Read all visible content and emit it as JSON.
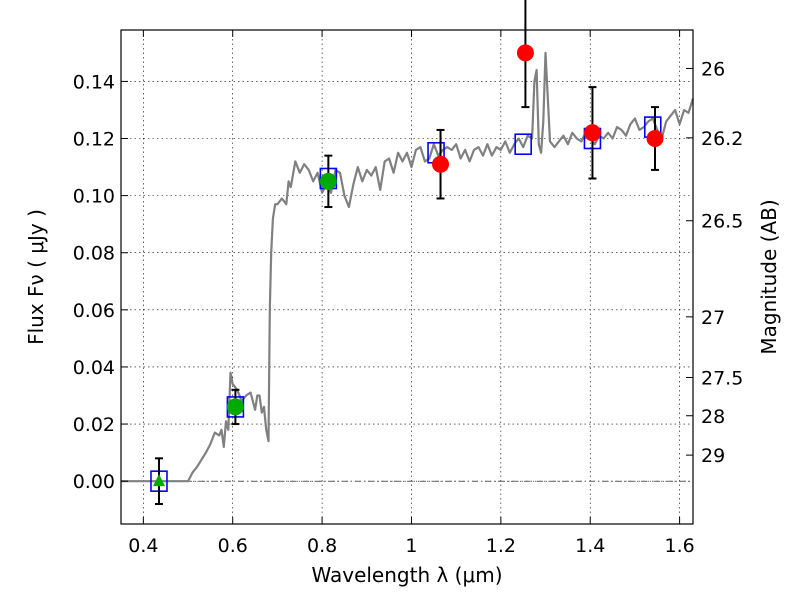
{
  "chart_data": {
    "type": "scatter",
    "xlabel": "Wavelength  λ (μm)",
    "ylabel": "Flux  Fν  ( μJy )",
    "ylabel_right": "Magnitude (AB)",
    "xlim": [
      0.35,
      1.63
    ],
    "ylim": [
      -0.015,
      0.158
    ],
    "grid": true,
    "x_ticks": [
      {
        "value": 0.4,
        "label": "0.4"
      },
      {
        "value": 0.6,
        "label": "0.6"
      },
      {
        "value": 0.8,
        "label": "0.8"
      },
      {
        "value": 1.0,
        "label": "1"
      },
      {
        "value": 1.2,
        "label": "1.2"
      },
      {
        "value": 1.4,
        "label": "1.4"
      },
      {
        "value": 1.6,
        "label": "1.6"
      }
    ],
    "y_ticks": [
      {
        "value": 0.0,
        "label": "0.00"
      },
      {
        "value": 0.02,
        "label": "0.02"
      },
      {
        "value": 0.04,
        "label": "0.04"
      },
      {
        "value": 0.06,
        "label": "0.06"
      },
      {
        "value": 0.08,
        "label": "0.08"
      },
      {
        "value": 0.1,
        "label": "0.10"
      },
      {
        "value": 0.12,
        "label": "0.12"
      },
      {
        "value": 0.14,
        "label": "0.14"
      }
    ],
    "mag_ticks": [
      {
        "value": 26.0,
        "label": "26"
      },
      {
        "value": 26.2,
        "label": "26.2"
      },
      {
        "value": 26.5,
        "label": "26.5"
      },
      {
        "value": 27.0,
        "label": "27"
      },
      {
        "value": 27.5,
        "label": "27.5"
      },
      {
        "value": 28.0,
        "label": "28"
      },
      {
        "value": 29.0,
        "label": "29"
      }
    ],
    "series": [
      {
        "kind": "model-sed",
        "color": "#808080",
        "x": [
          0.35,
          0.5,
          0.51,
          0.52,
          0.54,
          0.55,
          0.56,
          0.57,
          0.575,
          0.58,
          0.585,
          0.59,
          0.595,
          0.6,
          0.61,
          0.62,
          0.63,
          0.64,
          0.65,
          0.655,
          0.66,
          0.665,
          0.67,
          0.675,
          0.68,
          0.683,
          0.686,
          0.69,
          0.695,
          0.7,
          0.71,
          0.72,
          0.725,
          0.73,
          0.74,
          0.75,
          0.76,
          0.77,
          0.78,
          0.79,
          0.8,
          0.81,
          0.82,
          0.83,
          0.84,
          0.85,
          0.86,
          0.87,
          0.88,
          0.89,
          0.9,
          0.91,
          0.92,
          0.93,
          0.94,
          0.95,
          0.96,
          0.97,
          0.98,
          0.99,
          1.0,
          1.01,
          1.02,
          1.03,
          1.04,
          1.05,
          1.06,
          1.07,
          1.08,
          1.09,
          1.1,
          1.11,
          1.12,
          1.13,
          1.14,
          1.15,
          1.16,
          1.17,
          1.18,
          1.19,
          1.2,
          1.21,
          1.22,
          1.23,
          1.24,
          1.25,
          1.26,
          1.27,
          1.275,
          1.28,
          1.285,
          1.29,
          1.295,
          1.3,
          1.31,
          1.32,
          1.33,
          1.34,
          1.35,
          1.36,
          1.37,
          1.38,
          1.39,
          1.4,
          1.41,
          1.42,
          1.43,
          1.44,
          1.45,
          1.46,
          1.47,
          1.48,
          1.49,
          1.5,
          1.51,
          1.52,
          1.53,
          1.54,
          1.55,
          1.56,
          1.57,
          1.58,
          1.59,
          1.6,
          1.61,
          1.62,
          1.63
        ],
        "y": [
          0.0,
          0.0,
          0.003,
          0.005,
          0.01,
          0.013,
          0.017,
          0.016,
          0.018,
          0.012,
          0.021,
          0.018,
          0.038,
          0.034,
          0.032,
          0.028,
          0.03,
          0.031,
          0.025,
          0.03,
          0.03,
          0.024,
          0.026,
          0.018,
          0.014,
          0.06,
          0.08,
          0.092,
          0.097,
          0.097,
          0.099,
          0.097,
          0.105,
          0.103,
          0.112,
          0.108,
          0.111,
          0.109,
          0.105,
          0.108,
          0.101,
          0.104,
          0.101,
          0.109,
          0.108,
          0.1,
          0.096,
          0.104,
          0.11,
          0.105,
          0.109,
          0.107,
          0.11,
          0.102,
          0.112,
          0.113,
          0.108,
          0.115,
          0.112,
          0.115,
          0.11,
          0.116,
          0.117,
          0.112,
          0.113,
          0.118,
          0.114,
          0.116,
          0.117,
          0.116,
          0.118,
          0.113,
          0.116,
          0.112,
          0.116,
          0.117,
          0.114,
          0.118,
          0.114,
          0.117,
          0.116,
          0.119,
          0.115,
          0.118,
          0.12,
          0.117,
          0.121,
          0.12,
          0.14,
          0.144,
          0.118,
          0.115,
          0.126,
          0.15,
          0.119,
          0.117,
          0.119,
          0.121,
          0.118,
          0.122,
          0.12,
          0.119,
          0.122,
          0.12,
          0.118,
          0.121,
          0.12,
          0.122,
          0.12,
          0.124,
          0.123,
          0.121,
          0.125,
          0.127,
          0.123,
          0.124,
          0.126,
          0.127,
          0.123,
          0.12,
          0.126,
          0.128,
          0.13,
          0.125,
          0.13,
          0.129,
          0.134
        ]
      },
      {
        "kind": "model-photometry",
        "marker": "square",
        "color": "#0000ff",
        "x": [
          0.435,
          0.606,
          0.814,
          1.055,
          1.25,
          1.405,
          1.54
        ],
        "y": [
          0.0,
          0.026,
          0.106,
          0.115,
          0.118,
          0.12,
          0.124
        ]
      },
      {
        "kind": "observed-red",
        "marker": "circle",
        "color": "#ff0000",
        "x": [
          1.065,
          1.255,
          1.405,
          1.545
        ],
        "y": [
          0.111,
          0.15,
          0.122,
          0.12
        ],
        "err": [
          0.012,
          0.019,
          0.016,
          0.011
        ]
      },
      {
        "kind": "observed-green",
        "marker": "circle",
        "color": "#00aa00",
        "x": [
          0.606,
          0.814
        ],
        "y": [
          0.026,
          0.105
        ],
        "err": [
          0.006,
          0.009
        ]
      },
      {
        "kind": "upper-limit",
        "marker": "triangle",
        "color": "#00aa00",
        "x": [
          0.435
        ],
        "y": [
          0.0
        ],
        "err": [
          0.008
        ]
      }
    ]
  }
}
